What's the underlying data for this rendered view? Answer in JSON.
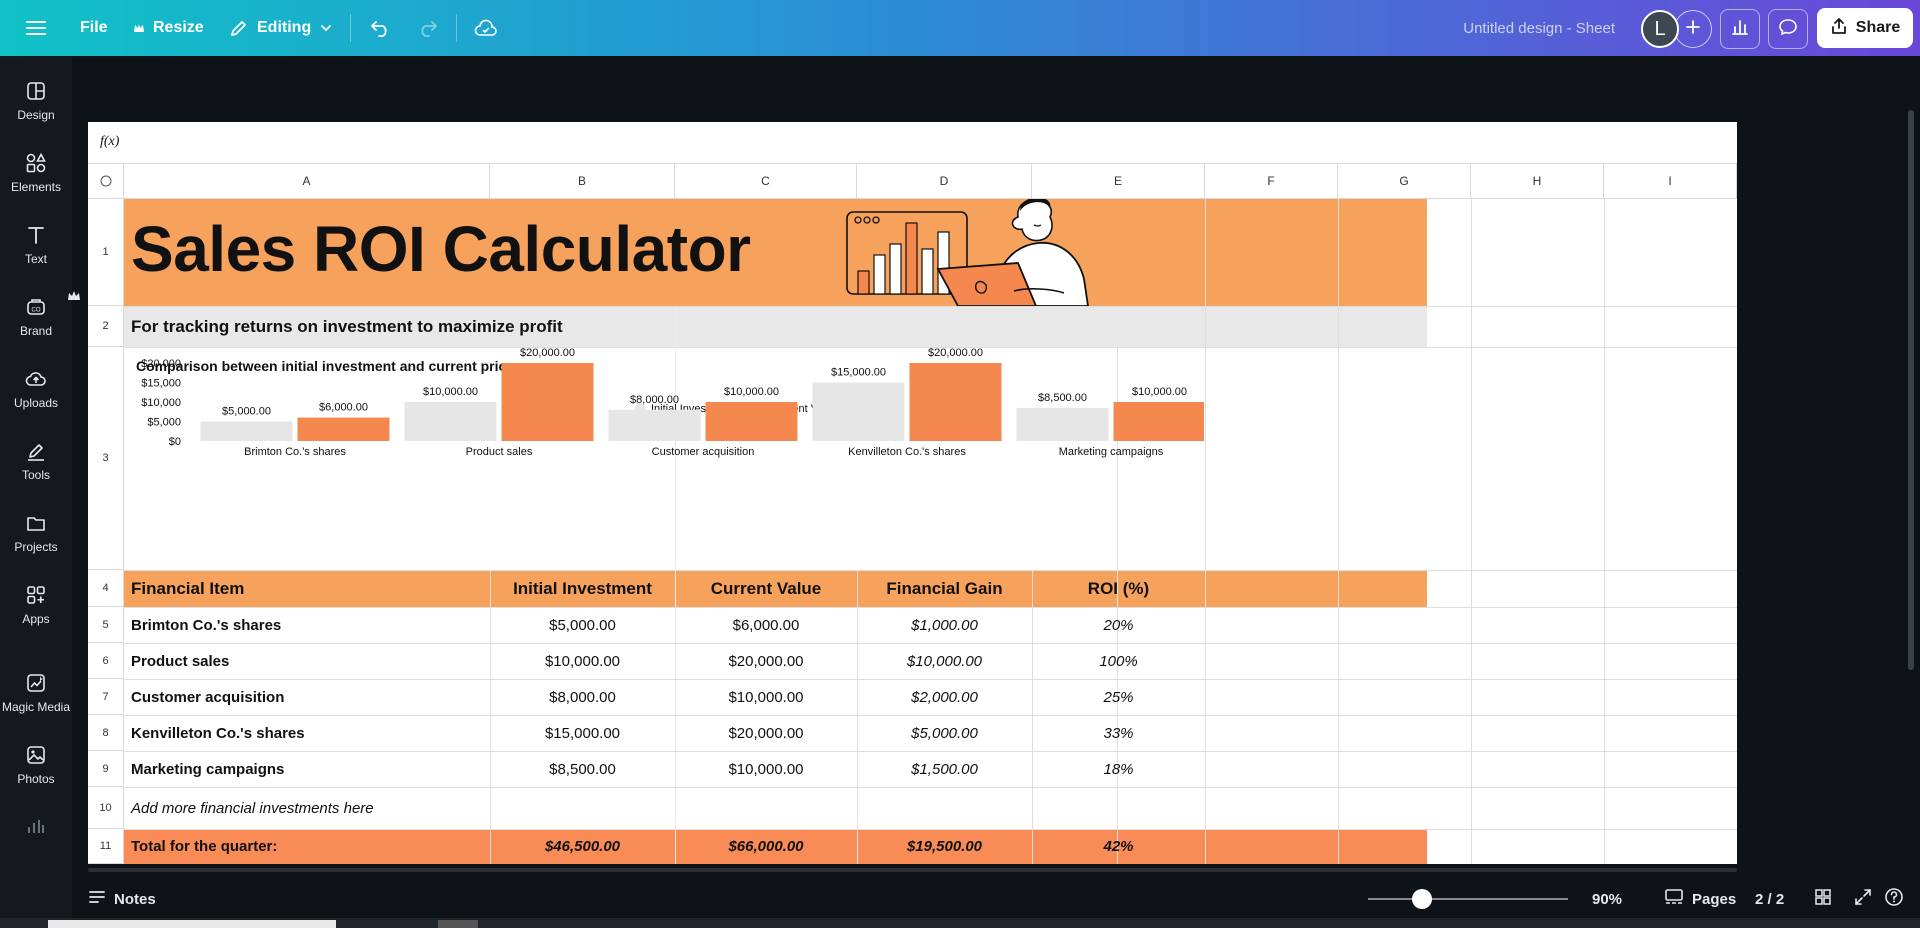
{
  "topbar": {
    "file_label": "File",
    "resize_label": "Resize",
    "editing_label": "Editing",
    "doc_title": "Untitled design - Sheet",
    "avatar_initial": "L",
    "share_label": "Share"
  },
  "sidebar": {
    "items": [
      {
        "label": "Design",
        "icon": "design-icon"
      },
      {
        "label": "Elements",
        "icon": "elements-icon"
      },
      {
        "label": "Text",
        "icon": "text-icon"
      },
      {
        "label": "Brand",
        "icon": "brand-icon"
      },
      {
        "label": "Uploads",
        "icon": "uploads-icon"
      },
      {
        "label": "Tools",
        "icon": "tools-icon"
      },
      {
        "label": "Projects",
        "icon": "projects-icon"
      },
      {
        "label": "Apps",
        "icon": "apps-icon"
      },
      {
        "label": "Magic Media",
        "icon": "magic-media-icon"
      },
      {
        "label": "Photos",
        "icon": "photos-icon"
      }
    ]
  },
  "sheet": {
    "fx_label": "f(x)",
    "columns": [
      "A",
      "B",
      "C",
      "D",
      "E",
      "F",
      "G",
      "H",
      "I"
    ],
    "rows": [
      "1",
      "2",
      "3",
      "4",
      "5",
      "6",
      "7",
      "8",
      "9",
      "10",
      "11"
    ],
    "title": "Sales ROI Calculator",
    "subtitle": "For tracking returns on investment to maximize profit",
    "header": [
      "Financial Item",
      "Initial Investment",
      "Current Value",
      "Financial Gain",
      "ROI (%)"
    ],
    "data_rows": [
      [
        "Brimton Co.'s shares",
        "$5,000.00",
        "$6,000.00",
        "$1,000.00",
        "20%"
      ],
      [
        "Product sales",
        "$10,000.00",
        "$20,000.00",
        "$10,000.00",
        "100%"
      ],
      [
        "Customer acquisition",
        "$8,000.00",
        "$10,000.00",
        "$2,000.00",
        "25%"
      ],
      [
        "Kenvilleton Co.'s shares",
        "$15,000.00",
        "$20,000.00",
        "$5,000.00",
        "33%"
      ],
      [
        "Marketing campaigns",
        "$8,500.00",
        "$10,000.00",
        "$1,500.00",
        "18%"
      ]
    ],
    "placeholder_row": "Add more financial investments here",
    "total_row": [
      "Total for the quarter:",
      "$46,500.00",
      "$66,000.00",
      "$19,500.00",
      "42%"
    ]
  },
  "colors": {
    "accent_orange": "#f4a261",
    "bar_orange": "#f4884f",
    "bar_gray": "#e6e6e6",
    "total_orange": "#f98b57"
  },
  "chart_data": {
    "type": "bar",
    "title": "Comparison between initial investment and current prices",
    "categories": [
      "Brimton Co.'s shares",
      "Product sales",
      "Customer acquisition",
      "Kenvilleton Co.'s shares",
      "Marketing campaigns"
    ],
    "series": [
      {
        "name": "Initial Investment",
        "values": [
          5000,
          10000,
          8000,
          15000,
          8500
        ],
        "labels": [
          "$5,000.00",
          "$10,000.00",
          "$8,000.00",
          "$15,000.00",
          "$8,500.00"
        ]
      },
      {
        "name": "Current Value",
        "values": [
          6000,
          20000,
          10000,
          20000,
          10000
        ],
        "labels": [
          "$6,000.00",
          "$20,000.00",
          "$10,000.00",
          "$20,000.00",
          "$10,000.00"
        ]
      }
    ],
    "ytick_labels": [
      "$0",
      "$5,000",
      "$10,000",
      "$15,000",
      "$20,000"
    ],
    "ylim": [
      0,
      20000
    ],
    "legend": "top-center"
  },
  "bottombar": {
    "notes_label": "Notes",
    "zoom": "90%",
    "zoom_fraction": 0.27,
    "pages_label": "Pages",
    "page_indicator": "2 / 2"
  }
}
